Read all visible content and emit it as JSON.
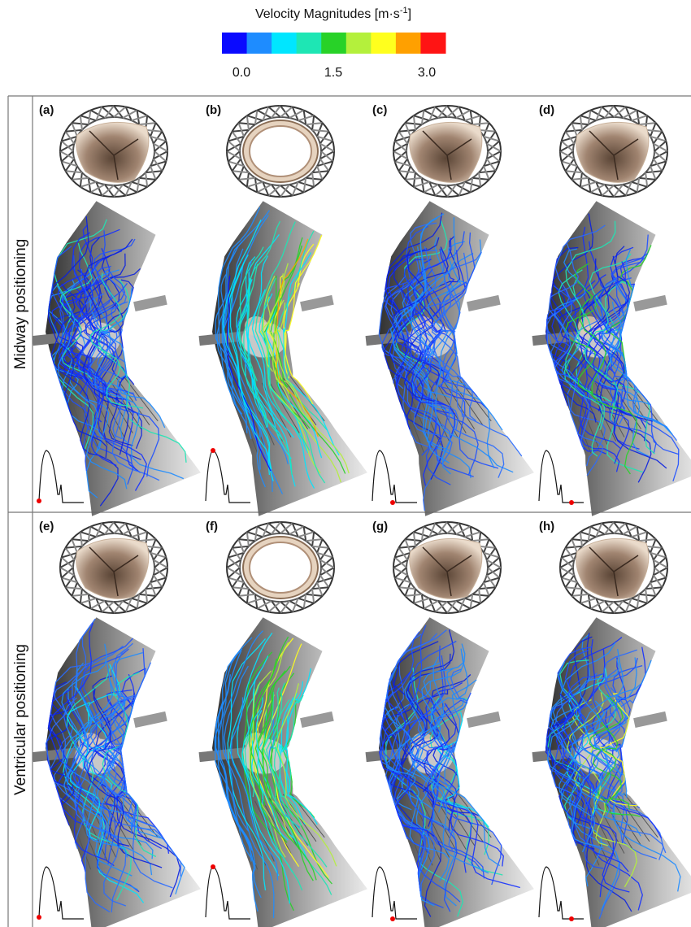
{
  "colorbar": {
    "title": "Velocity Magnitudes [m·s",
    "title_superscript": "-1",
    "title_suffix": "]",
    "ticks": [
      "0.0",
      "1.5",
      "3.0"
    ],
    "colors": [
      "#0a0aff",
      "#1e8cff",
      "#00e6ff",
      "#1ee6b4",
      "#28d228",
      "#b4f03c",
      "#ffff1e",
      "#ffa000",
      "#ff1414"
    ]
  },
  "rows": [
    {
      "label": "Midway positioning",
      "panels": [
        "(a)",
        "(b)",
        "(c)",
        "(d)"
      ]
    },
    {
      "label": "Ventricular positioning",
      "panels": [
        "(e)",
        "(f)",
        "(g)",
        "(h)"
      ]
    }
  ]
}
